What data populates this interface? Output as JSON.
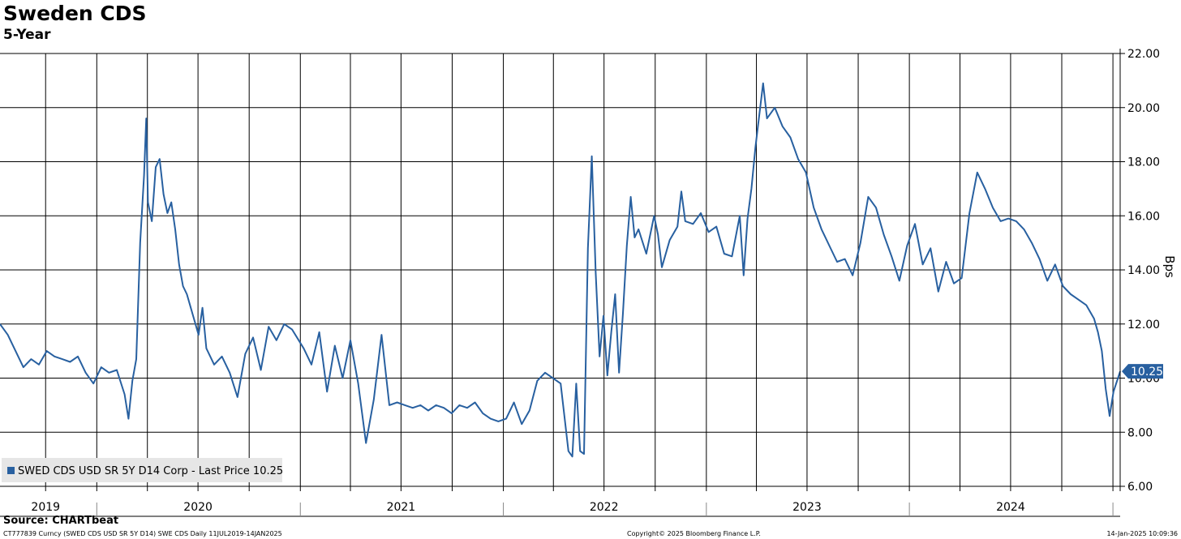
{
  "title": "Sweden CDS",
  "subtitle": "5-Year",
  "source": "Source: CHARTbeat",
  "footer": {
    "left": "CT777839 Curncy (SWED CDS USD SR 5Y D14) SWE CDS  Daily 11JUL2019-14JAN2025",
    "center": "Copyright© 2025 Bloomberg Finance L.P.",
    "right": "14-Jan-2025 10:09:36"
  },
  "chart_data": {
    "type": "line",
    "title": "Sweden CDS",
    "subtitle": "5-Year",
    "ylabel": "Bps",
    "ylim": [
      6,
      22
    ],
    "y_axis_side": "right",
    "y_ticks": [
      "6.00",
      "8.00",
      "10.00",
      "12.00",
      "14.00",
      "16.00",
      "18.00",
      "20.00",
      "22.00"
    ],
    "xlim": [
      "2019-07-11",
      "2025-01-14"
    ],
    "x_year_labels": [
      {
        "label": "2019",
        "date": "2019-10-01"
      },
      {
        "label": "2020",
        "date": "2020-07-01"
      },
      {
        "label": "2021",
        "date": "2021-07-01"
      },
      {
        "label": "2022",
        "date": "2022-07-01"
      },
      {
        "label": "2023",
        "date": "2023-07-01"
      },
      {
        "label": "2024",
        "date": "2024-07-01"
      }
    ],
    "x_year_boundaries": [
      "2020-01-01",
      "2021-01-01",
      "2022-01-01",
      "2023-01-01",
      "2024-01-01",
      "2025-01-01"
    ],
    "grid": true,
    "legend": {
      "placement": "bottom-left",
      "text": "SWED CDS USD SR 5Y D14 Corp - Last Price 10.25"
    },
    "last_value_label": "10.25",
    "line_color": "#2860a0",
    "series": [
      {
        "name": "SWED CDS USD SR 5Y D14 Corp - Last Price",
        "points": [
          [
            "2019-07-11",
            12.0
          ],
          [
            "2019-07-25",
            11.6
          ],
          [
            "2019-08-08",
            11.0
          ],
          [
            "2019-08-22",
            10.4
          ],
          [
            "2019-09-05",
            10.7
          ],
          [
            "2019-09-19",
            10.5
          ],
          [
            "2019-10-03",
            11.0
          ],
          [
            "2019-10-17",
            10.8
          ],
          [
            "2019-10-31",
            10.7
          ],
          [
            "2019-11-14",
            10.6
          ],
          [
            "2019-11-28",
            10.8
          ],
          [
            "2019-12-12",
            10.2
          ],
          [
            "2019-12-26",
            9.8
          ],
          [
            "2020-01-09",
            10.4
          ],
          [
            "2020-01-23",
            10.2
          ],
          [
            "2020-02-06",
            10.3
          ],
          [
            "2020-02-20",
            9.4
          ],
          [
            "2020-02-27",
            8.5
          ],
          [
            "2020-03-05",
            9.9
          ],
          [
            "2020-03-12",
            10.7
          ],
          [
            "2020-03-19",
            15.0
          ],
          [
            "2020-03-26",
            17.5
          ],
          [
            "2020-03-30",
            19.6
          ],
          [
            "2020-04-02",
            16.5
          ],
          [
            "2020-04-09",
            15.8
          ],
          [
            "2020-04-16",
            17.8
          ],
          [
            "2020-04-23",
            18.1
          ],
          [
            "2020-04-30",
            16.8
          ],
          [
            "2020-05-07",
            16.1
          ],
          [
            "2020-05-14",
            16.5
          ],
          [
            "2020-05-21",
            15.5
          ],
          [
            "2020-05-28",
            14.2
          ],
          [
            "2020-06-04",
            13.4
          ],
          [
            "2020-06-11",
            13.1
          ],
          [
            "2020-06-18",
            12.6
          ],
          [
            "2020-06-25",
            12.1
          ],
          [
            "2020-07-02",
            11.6
          ],
          [
            "2020-07-09",
            12.6
          ],
          [
            "2020-07-16",
            11.1
          ],
          [
            "2020-07-30",
            10.5
          ],
          [
            "2020-08-13",
            10.8
          ],
          [
            "2020-08-27",
            10.2
          ],
          [
            "2020-09-10",
            9.3
          ],
          [
            "2020-09-24",
            10.9
          ],
          [
            "2020-10-08",
            11.5
          ],
          [
            "2020-10-22",
            10.3
          ],
          [
            "2020-11-05",
            11.9
          ],
          [
            "2020-11-19",
            11.4
          ],
          [
            "2020-12-03",
            12.0
          ],
          [
            "2020-12-17",
            11.8
          ],
          [
            "2021-01-07",
            11.1
          ],
          [
            "2021-01-21",
            10.5
          ],
          [
            "2021-02-04",
            11.7
          ],
          [
            "2021-02-18",
            9.5
          ],
          [
            "2021-03-04",
            11.2
          ],
          [
            "2021-03-18",
            10.0
          ],
          [
            "2021-04-01",
            11.4
          ],
          [
            "2021-04-15",
            9.8
          ],
          [
            "2021-04-29",
            7.6
          ],
          [
            "2021-05-13",
            9.2
          ],
          [
            "2021-05-27",
            11.6
          ],
          [
            "2021-06-10",
            9.0
          ],
          [
            "2021-06-24",
            9.1
          ],
          [
            "2021-07-08",
            9.0
          ],
          [
            "2021-07-22",
            8.9
          ],
          [
            "2021-08-05",
            9.0
          ],
          [
            "2021-08-19",
            8.8
          ],
          [
            "2021-09-02",
            9.0
          ],
          [
            "2021-09-16",
            8.9
          ],
          [
            "2021-09-30",
            8.7
          ],
          [
            "2021-10-14",
            9.0
          ],
          [
            "2021-10-28",
            8.9
          ],
          [
            "2021-11-11",
            9.1
          ],
          [
            "2021-11-25",
            8.7
          ],
          [
            "2021-12-09",
            8.5
          ],
          [
            "2021-12-23",
            8.4
          ],
          [
            "2022-01-06",
            8.5
          ],
          [
            "2022-01-20",
            9.1
          ],
          [
            "2022-02-03",
            8.3
          ],
          [
            "2022-02-17",
            8.8
          ],
          [
            "2022-03-03",
            9.9
          ],
          [
            "2022-03-17",
            10.2
          ],
          [
            "2022-03-31",
            10.0
          ],
          [
            "2022-04-14",
            9.8
          ],
          [
            "2022-04-28",
            7.3
          ],
          [
            "2022-05-05",
            7.1
          ],
          [
            "2022-05-12",
            9.8
          ],
          [
            "2022-05-19",
            7.3
          ],
          [
            "2022-05-26",
            7.2
          ],
          [
            "2022-06-02",
            14.8
          ],
          [
            "2022-06-09",
            18.2
          ],
          [
            "2022-06-16",
            13.9
          ],
          [
            "2022-06-23",
            10.8
          ],
          [
            "2022-06-30",
            12.3
          ],
          [
            "2022-07-07",
            10.1
          ],
          [
            "2022-07-14",
            11.7
          ],
          [
            "2022-07-21",
            13.1
          ],
          [
            "2022-07-28",
            10.2
          ],
          [
            "2022-08-04",
            12.4
          ],
          [
            "2022-08-11",
            14.9
          ],
          [
            "2022-08-18",
            16.7
          ],
          [
            "2022-08-25",
            15.2
          ],
          [
            "2022-09-01",
            15.5
          ],
          [
            "2022-09-15",
            14.6
          ],
          [
            "2022-09-29",
            16.0
          ],
          [
            "2022-10-06",
            15.3
          ],
          [
            "2022-10-13",
            14.1
          ],
          [
            "2022-10-27",
            15.1
          ],
          [
            "2022-11-10",
            15.6
          ],
          [
            "2022-11-17",
            16.9
          ],
          [
            "2022-11-24",
            15.8
          ],
          [
            "2022-12-08",
            15.7
          ],
          [
            "2022-12-22",
            16.1
          ],
          [
            "2023-01-05",
            15.4
          ],
          [
            "2023-01-19",
            15.6
          ],
          [
            "2023-02-02",
            14.6
          ],
          [
            "2023-02-16",
            14.5
          ],
          [
            "2023-03-02",
            16.0
          ],
          [
            "2023-03-09",
            13.8
          ],
          [
            "2023-03-16",
            15.9
          ],
          [
            "2023-03-23",
            17.0
          ],
          [
            "2023-03-30",
            18.5
          ],
          [
            "2023-04-06",
            19.7
          ],
          [
            "2023-04-13",
            20.9
          ],
          [
            "2023-04-20",
            19.6
          ],
          [
            "2023-05-04",
            20.0
          ],
          [
            "2023-05-18",
            19.3
          ],
          [
            "2023-06-01",
            18.9
          ],
          [
            "2023-06-15",
            18.1
          ],
          [
            "2023-06-29",
            17.6
          ],
          [
            "2023-07-13",
            16.3
          ],
          [
            "2023-07-27",
            15.5
          ],
          [
            "2023-08-10",
            14.9
          ],
          [
            "2023-08-24",
            14.3
          ],
          [
            "2023-09-07",
            14.4
          ],
          [
            "2023-09-21",
            13.8
          ],
          [
            "2023-10-05",
            15.0
          ],
          [
            "2023-10-19",
            16.7
          ],
          [
            "2023-11-02",
            16.3
          ],
          [
            "2023-11-16",
            15.3
          ],
          [
            "2023-11-30",
            14.5
          ],
          [
            "2023-12-14",
            13.6
          ],
          [
            "2023-12-28",
            14.9
          ],
          [
            "2024-01-11",
            15.7
          ],
          [
            "2024-01-25",
            14.2
          ],
          [
            "2024-02-08",
            14.8
          ],
          [
            "2024-02-22",
            13.2
          ],
          [
            "2024-03-07",
            14.3
          ],
          [
            "2024-03-21",
            13.5
          ],
          [
            "2024-04-04",
            13.7
          ],
          [
            "2024-04-18",
            16.1
          ],
          [
            "2024-05-02",
            17.6
          ],
          [
            "2024-05-16",
            17.0
          ],
          [
            "2024-05-30",
            16.3
          ],
          [
            "2024-06-13",
            15.8
          ],
          [
            "2024-06-27",
            15.9
          ],
          [
            "2024-07-11",
            15.8
          ],
          [
            "2024-07-25",
            15.5
          ],
          [
            "2024-08-08",
            15.0
          ],
          [
            "2024-08-22",
            14.4
          ],
          [
            "2024-09-05",
            13.6
          ],
          [
            "2024-09-19",
            14.2
          ],
          [
            "2024-10-03",
            13.4
          ],
          [
            "2024-10-17",
            13.1
          ],
          [
            "2024-10-31",
            12.9
          ],
          [
            "2024-11-14",
            12.7
          ],
          [
            "2024-11-28",
            12.2
          ],
          [
            "2024-12-05",
            11.7
          ],
          [
            "2024-12-12",
            11.0
          ],
          [
            "2024-12-19",
            9.6
          ],
          [
            "2024-12-26",
            8.6
          ],
          [
            "2025-01-02",
            9.5
          ],
          [
            "2025-01-14",
            10.25
          ]
        ]
      }
    ]
  }
}
